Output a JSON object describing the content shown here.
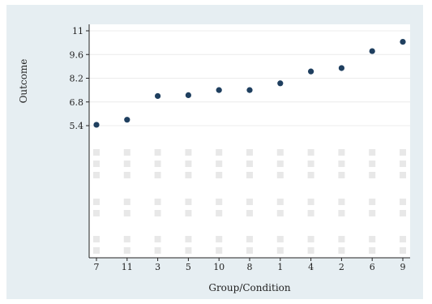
{
  "chart_data": {
    "type": "scatter",
    "title": "",
    "xlabel": "Group/Condition",
    "ylabel": "Outcome",
    "categories": [
      "7",
      "11",
      "3",
      "5",
      "10",
      "8",
      "1",
      "4",
      "2",
      "6",
      "9"
    ],
    "values": [
      5.45,
      5.75,
      7.15,
      7.2,
      7.5,
      7.5,
      7.9,
      8.6,
      8.8,
      9.8,
      10.35
    ],
    "yticks": [
      "5.4",
      "6.8",
      "8.2",
      "9.6",
      "11"
    ],
    "ytick_values": [
      5.4,
      6.8,
      8.2,
      9.6,
      11
    ],
    "grid": true,
    "marker_color": "#1f3f5f",
    "background_color": "#e6eef2",
    "placeholder_color": "#e8e8e8"
  }
}
